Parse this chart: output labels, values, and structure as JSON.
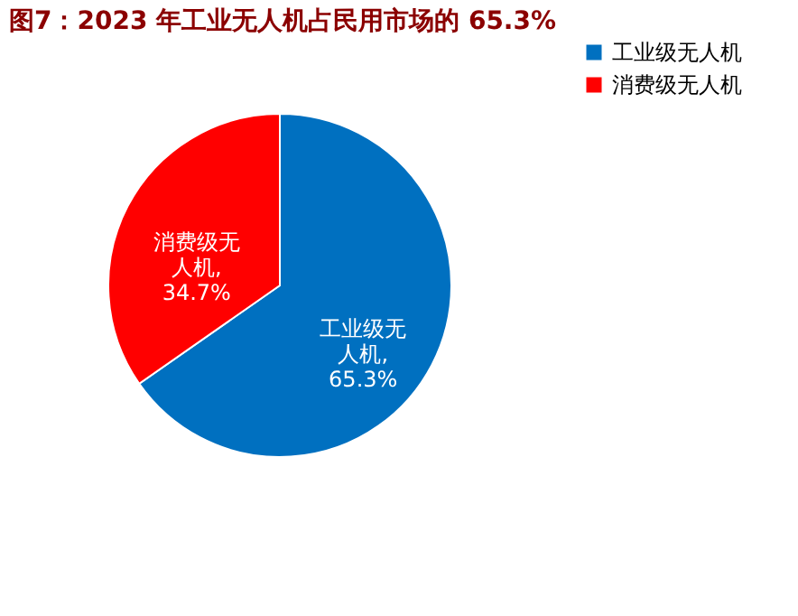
{
  "chart_data": {
    "type": "pie",
    "title": "图7：2023 年工业无人机占民用市场的 65.3%",
    "categories": [
      "工业级无人机",
      "消费级无人机"
    ],
    "values": [
      65.3,
      34.7
    ],
    "value_labels": [
      "工业级无人机,65.3%",
      "消费级无人机,34.7%"
    ],
    "colors": [
      "#0070c0",
      "#ff0000"
    ],
    "legend": "right"
  }
}
